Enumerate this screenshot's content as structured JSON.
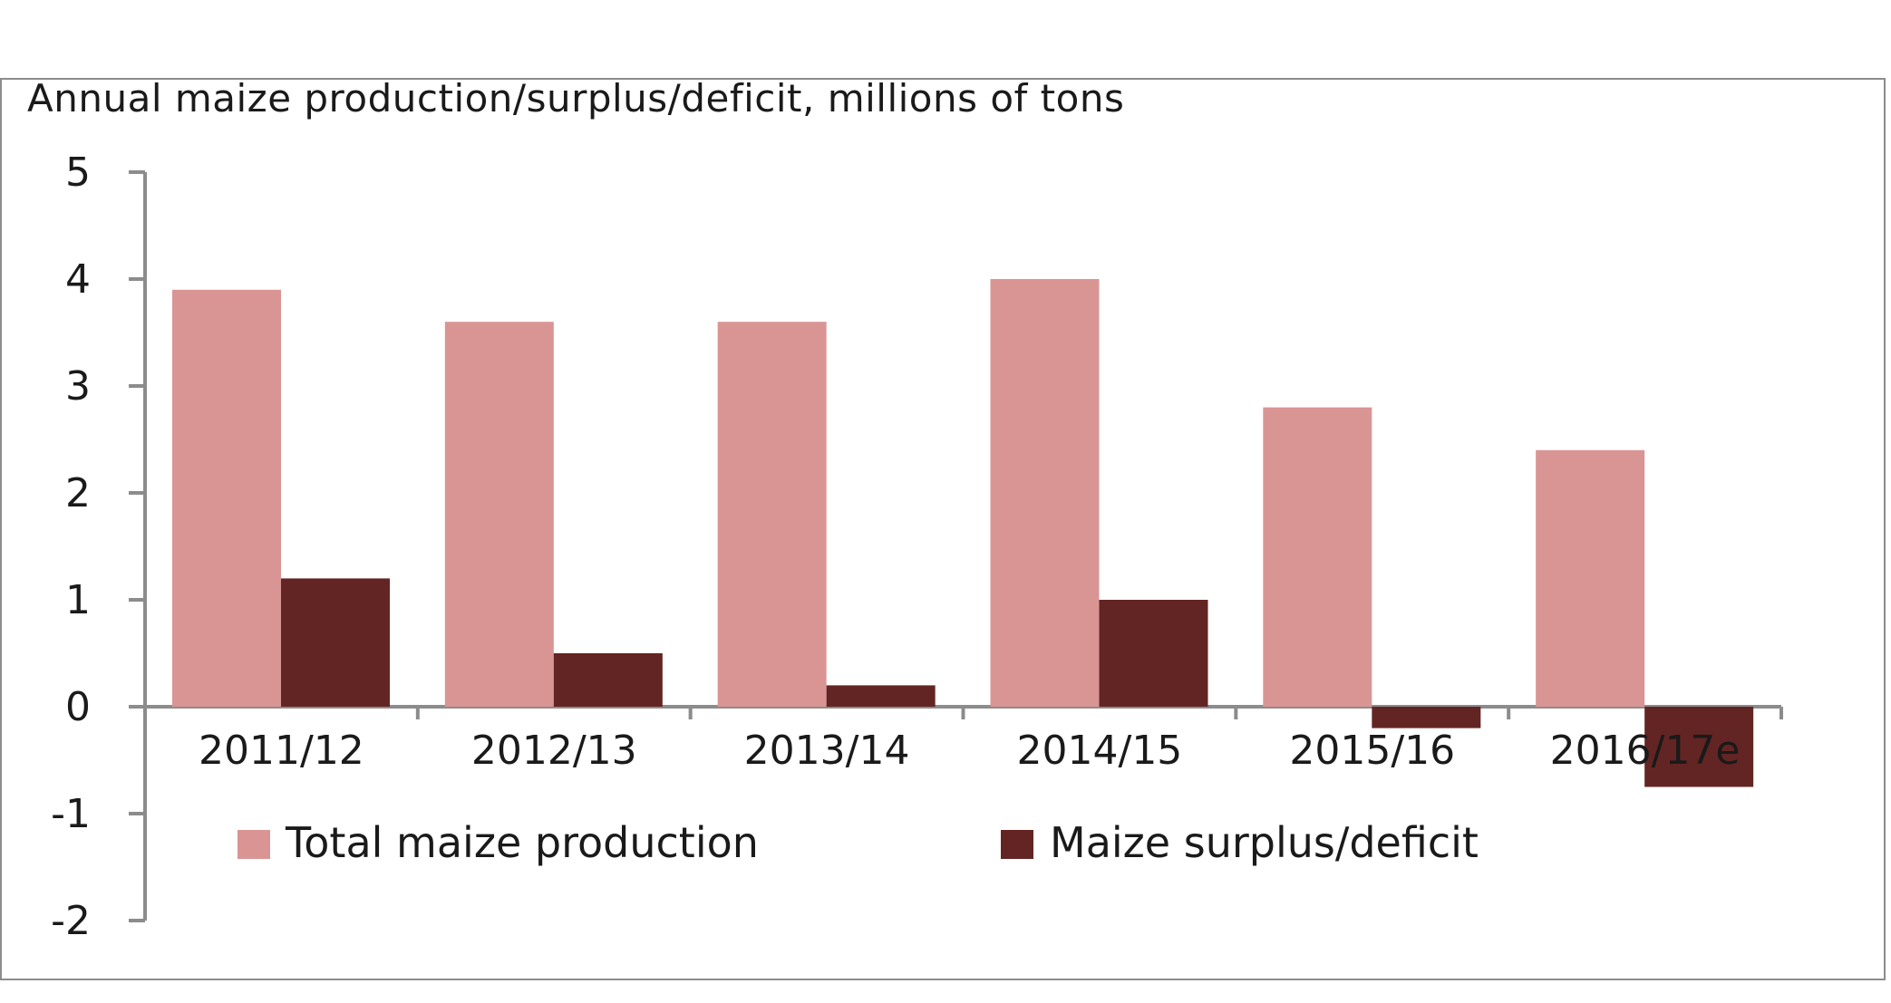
{
  "chart_data": {
    "type": "bar",
    "title": "Annual maize production/surplus/deficit, millions of tons",
    "xlabel": "",
    "ylabel": "",
    "categories": [
      "2011/12",
      "2012/13",
      "2013/14",
      "2014/15",
      "2015/16",
      "2016/17e"
    ],
    "series": [
      {
        "name": "Total maize production",
        "values": [
          3.9,
          3.6,
          3.6,
          4.0,
          2.8,
          2.4
        ],
        "color": "#d99594"
      },
      {
        "name": "Maize surplus/deficit",
        "values": [
          1.2,
          0.5,
          0.2,
          1.0,
          -0.2,
          -0.75
        ],
        "color": "#632523"
      }
    ],
    "ylim": [
      -2,
      5
    ],
    "yticks": [
      5,
      4,
      3,
      2,
      1,
      0,
      -1,
      -2
    ],
    "ytick_labels": [
      "5",
      "4",
      "3",
      "2",
      "1",
      "0",
      "-1",
      "-2"
    ],
    "grid": false,
    "legend_position": "bottom"
  }
}
